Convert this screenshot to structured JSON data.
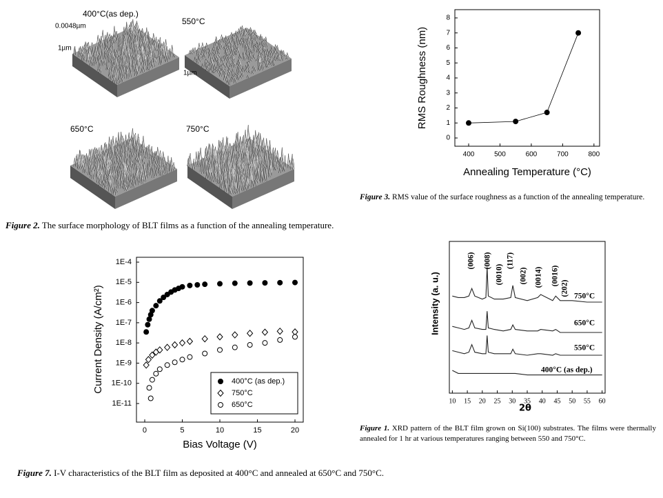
{
  "afm": {
    "labels": [
      "400°C(as dep.)",
      "0.0048µm",
      "1µm",
      "550°C",
      "1µm",
      "650°C",
      "750°C"
    ]
  },
  "captions": [
    {
      "label": "Figure 2.",
      "text": "The surface morphology of BLT films as a function of the annealing temperature."
    },
    {
      "label": "Figure 3.",
      "text": "RMS value of the surface roughness as a function of the annealing temperature."
    },
    {
      "label": "Figure 7.",
      "text": "I-V characteristics of the BLT film as deposited at 400°C and annealed at 650°C and 750°C."
    },
    {
      "label": "Figure 1.",
      "text": "XRD pattern of the BLT film grown on Si(100) substrates. The films were thermally annealed for 1 hr at various temperatures ranging between 550 and 750°C."
    }
  ],
  "chart_data": [
    {
      "type": "line",
      "xlabel": "Annealing Temperature (°C)",
      "ylabel": "RMS Roughness (nm)",
      "xlim": [
        356,
        818
      ],
      "ylim": [
        -0.55,
        8.55
      ],
      "xticks": [
        400,
        500,
        600,
        700,
        800
      ],
      "yticks": [
        0,
        1,
        2,
        3,
        4,
        5,
        6,
        7,
        8
      ],
      "series": [
        {
          "name": "RMS",
          "color": "#000000",
          "marker": "filled-circle",
          "x": [
            400,
            550,
            650,
            750
          ],
          "values": [
            1.0,
            1.1,
            1.7,
            7.0
          ]
        }
      ]
    },
    {
      "type": "scatter",
      "xlabel": "Bias Voltage (V)",
      "ylabel": "Current Density (A/cm²)",
      "yscale": "log",
      "xlim": [
        -1.1,
        21.1
      ],
      "ylim": [
        1.2e-12,
        0.000174
      ],
      "xticks": [
        0,
        5,
        10,
        15,
        20
      ],
      "yticks": [
        {
          "value": 1e-11,
          "label": "1E-11"
        },
        {
          "value": 1e-10,
          "label": "1E-10"
        },
        {
          "value": 1e-09,
          "label": "1E-9"
        },
        {
          "value": 1e-08,
          "label": "1E-8"
        },
        {
          "value": 1e-07,
          "label": "1E-7"
        },
        {
          "value": 1e-06,
          "label": "1E-6"
        },
        {
          "value": 1e-05,
          "label": "1E-5"
        },
        {
          "value": 0.0001,
          "label": "1E-4"
        }
      ],
      "legend": "lower right",
      "series": [
        {
          "name": "400°C (as dep.)",
          "color": "#000000",
          "marker": "filled-circle",
          "x": [
            0.2,
            0.4,
            0.6,
            0.8,
            1,
            1.5,
            2,
            2.5,
            3,
            3.5,
            4,
            4.5,
            5,
            6,
            7,
            8,
            10,
            12,
            14,
            16,
            18,
            20
          ],
          "values": [
            3.5e-08,
            8e-08,
            1.5e-07,
            2.5e-07,
            4e-07,
            7e-07,
            1.2e-06,
            1.8e-06,
            2.5e-06,
            3.3e-06,
            4.2e-06,
            5e-06,
            6e-06,
            7e-06,
            7.5e-06,
            8e-06,
            8.5e-06,
            9e-06,
            9.2e-06,
            9.4e-06,
            9.6e-06,
            9.8e-06
          ]
        },
        {
          "name": "750°C",
          "color": "#000000",
          "marker": "open-diamond",
          "x": [
            0.2,
            0.5,
            1,
            1.5,
            2,
            3,
            4,
            5,
            6,
            8,
            10,
            12,
            14,
            16,
            18,
            20
          ],
          "values": [
            8e-10,
            1.5e-09,
            2.5e-09,
            3.5e-09,
            4.5e-09,
            6e-09,
            8e-09,
            1e-08,
            1.2e-08,
            1.6e-08,
            2e-08,
            2.5e-08,
            3e-08,
            3.4e-08,
            3.8e-08,
            3.5e-08
          ]
        },
        {
          "name": "650°C",
          "color": "#000000",
          "marker": "open-circle",
          "x": [
            0.6,
            0.8,
            1,
            1.5,
            2,
            3,
            4,
            5,
            6,
            8,
            10,
            12,
            14,
            16,
            18,
            20
          ],
          "values": [
            6e-11,
            1.8e-11,
            1.5e-10,
            3e-10,
            5e-10,
            8e-10,
            1.1e-09,
            1.5e-09,
            2e-09,
            3e-09,
            4.5e-09,
            6e-09,
            8e-09,
            1e-08,
            1.4e-08,
            2e-08
          ]
        }
      ]
    },
    {
      "type": "line",
      "xlabel": "2θ",
      "ylabel": "Intensity (a. u.)",
      "xlim": [
        9,
        61
      ],
      "ylim": [
        0,
        10
      ],
      "xticks": [
        10,
        15,
        20,
        25,
        30,
        35,
        40,
        45,
        50,
        55,
        60
      ],
      "annotations": [
        "(006)",
        "(008)",
        "(0010)",
        "(117)",
        "(002)",
        "(0014)",
        "(0016)",
        "(202)",
        "750°C",
        "650°C",
        "550°C",
        "400°C (as dep.)"
      ],
      "series": [
        {
          "name": "750°C",
          "color": "#222222",
          "marker": "none",
          "x": [
            10,
            12,
            14,
            15.5,
            16.5,
            17.5,
            20,
            21.2,
            21.6,
            22,
            24,
            27,
            29.5,
            30.2,
            31,
            35,
            38.5,
            39.5,
            43.5,
            44.5,
            46,
            50,
            55,
            60
          ],
          "values": [
            6.4,
            6.3,
            6.3,
            6.4,
            6.9,
            6.4,
            6.2,
            6.3,
            8.3,
            6.4,
            6.2,
            6.2,
            6.3,
            7.1,
            6.3,
            6.1,
            6.3,
            6.5,
            6.1,
            6.4,
            6.1,
            6.1,
            6.0,
            6.0
          ]
        },
        {
          "name": "650°C",
          "color": "#222222",
          "marker": "none",
          "x": [
            10,
            12,
            14,
            15.5,
            16.5,
            17.5,
            20,
            21.2,
            21.6,
            22,
            24,
            27,
            29.5,
            30.2,
            31,
            35,
            38.5,
            39.5,
            43.5,
            44.5,
            46,
            50,
            55,
            60
          ],
          "values": [
            4.4,
            4.3,
            4.2,
            4.3,
            4.8,
            4.3,
            4.2,
            4.2,
            5.4,
            4.3,
            4.2,
            4.1,
            4.2,
            4.5,
            4.2,
            4.1,
            4.1,
            4.2,
            4.1,
            4.2,
            4.0,
            4.0,
            4.0,
            4.0
          ]
        },
        {
          "name": "550°C",
          "color": "#222222",
          "marker": "none",
          "x": [
            10,
            12,
            14,
            15.5,
            16.5,
            17.5,
            20,
            21.2,
            21.6,
            22,
            24,
            27,
            29.5,
            30.2,
            31,
            35,
            38.5,
            39.5,
            43.5,
            44.5,
            46,
            50,
            55,
            60
          ],
          "values": [
            2.8,
            2.7,
            2.6,
            2.7,
            3.2,
            2.7,
            2.6,
            2.6,
            3.8,
            2.7,
            2.6,
            2.6,
            2.6,
            2.9,
            2.6,
            2.5,
            2.6,
            2.6,
            2.5,
            2.6,
            2.5,
            2.5,
            2.5,
            2.5
          ]
        },
        {
          "name": "400°C (as dep.)",
          "color": "#222222",
          "marker": "none",
          "x": [
            10,
            12,
            14,
            15.5,
            16.5,
            17.5,
            20,
            21.2,
            21.6,
            22,
            24,
            27,
            29.5,
            30.2,
            31,
            35,
            38.5,
            39.5,
            43.5,
            44.5,
            46,
            50,
            55,
            60
          ],
          "values": [
            1.5,
            1.3,
            1.3,
            1.3,
            1.3,
            1.3,
            1.3,
            1.3,
            1.3,
            1.3,
            1.3,
            1.3,
            1.3,
            1.3,
            1.3,
            1.2,
            1.2,
            1.2,
            1.2,
            1.2,
            1.2,
            1.2,
            1.2,
            1.2
          ]
        }
      ]
    }
  ]
}
